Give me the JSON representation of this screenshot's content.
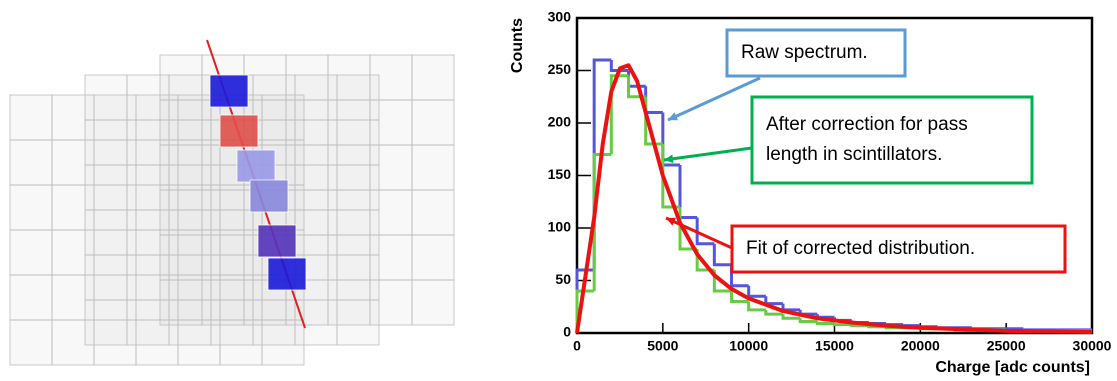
{
  "chart_data": {
    "type": "histogram",
    "xlabel": "Charge [adc counts]",
    "ylabel": "Counts",
    "xlim": [
      0,
      30000
    ],
    "ylim": [
      0,
      300
    ],
    "xticks": [
      0,
      5000,
      10000,
      15000,
      20000,
      25000,
      30000
    ],
    "yticks": [
      0,
      50,
      100,
      150,
      200,
      250,
      300
    ],
    "bins": [
      0,
      1000,
      2000,
      3000,
      4000,
      5000,
      6000,
      7000,
      8000,
      9000,
      10000,
      11000,
      12000,
      13000,
      14000,
      15000,
      16000,
      17000,
      18000,
      19000,
      20000,
      21000,
      22000,
      23000,
      24000,
      25000,
      26000,
      27000,
      28000,
      29000,
      30000
    ],
    "series": [
      {
        "color": "#5555dd",
        "values": [
          60,
          260,
          250,
          235,
          210,
          160,
          110,
          85,
          65,
          45,
          35,
          28,
          22,
          18,
          15,
          12,
          10,
          9,
          8,
          7,
          6,
          5,
          5,
          4,
          4,
          4,
          3,
          3,
          3,
          3
        ]
      },
      {
        "color": "#66cc44",
        "values": [
          40,
          170,
          245,
          225,
          180,
          120,
          80,
          60,
          40,
          30,
          22,
          18,
          14,
          11,
          9,
          8,
          7,
          6,
          5,
          5,
          4,
          4,
          3,
          3,
          3,
          2,
          2,
          2,
          2,
          2
        ]
      }
    ],
    "lines": [
      {
        "color": "#ee1111",
        "x": [
          0,
          1000,
          1500,
          2000,
          2500,
          3000,
          3500,
          4000,
          5000,
          6000,
          7000,
          8000,
          9000,
          10000,
          12000,
          14000,
          16000,
          18000,
          20000,
          25000,
          30000
        ],
        "values": [
          0,
          110,
          180,
          230,
          252,
          255,
          240,
          210,
          150,
          105,
          75,
          55,
          42,
          33,
          21,
          14,
          10,
          7,
          5,
          2,
          1
        ]
      }
    ],
    "annotations": [
      {
        "lines": [
          "Raw spectrum."
        ],
        "color": "#5b9bd5"
      },
      {
        "lines": [
          "After correction for pass",
          "length in scintillators."
        ],
        "color": "#00b050"
      },
      {
        "lines": [
          "Fit of corrected distribution."
        ],
        "color": "#ee1111"
      }
    ]
  }
}
